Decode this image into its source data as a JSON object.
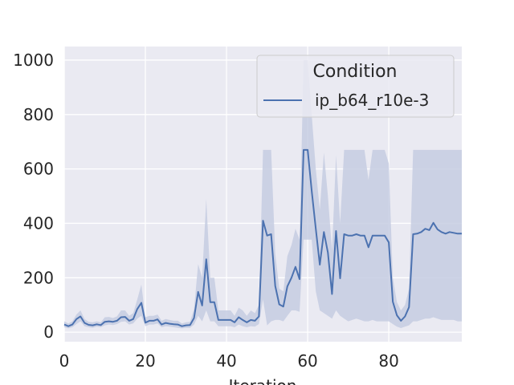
{
  "chart_data": {
    "type": "line",
    "title": "",
    "xlabel": "Iteration",
    "ylabel": "",
    "xlim": [
      0,
      98
    ],
    "ylim": [
      -35,
      1050
    ],
    "xticks": [
      0,
      20,
      40,
      60,
      80
    ],
    "yticks": [
      0,
      200,
      400,
      600,
      800,
      1000
    ],
    "grid": true,
    "legend": {
      "title": "Condition",
      "placement": "top-right"
    },
    "colors": {
      "line": "#4c72b0",
      "band": "#c5cde2",
      "background": "#eaeaf2",
      "grid": "#ffffff"
    },
    "series": [
      {
        "name": "ip_b64_r10e-3",
        "x": [
          0,
          1,
          2,
          3,
          4,
          5,
          6,
          7,
          8,
          9,
          10,
          11,
          12,
          13,
          14,
          15,
          16,
          17,
          18,
          19,
          20,
          21,
          22,
          23,
          24,
          25,
          26,
          27,
          28,
          29,
          30,
          31,
          32,
          33,
          34,
          35,
          36,
          37,
          38,
          39,
          40,
          41,
          42,
          43,
          44,
          45,
          46,
          47,
          48,
          49,
          50,
          51,
          52,
          53,
          54,
          55,
          56,
          57,
          58,
          59,
          60,
          61,
          62,
          63,
          64,
          65,
          66,
          67,
          68,
          69,
          70,
          71,
          72,
          73,
          74,
          75,
          76,
          77,
          78,
          79,
          80,
          81,
          82,
          83,
          84,
          85,
          86,
          87,
          88,
          89,
          90,
          91,
          92,
          93,
          94,
          95,
          96,
          97,
          98
        ],
        "y": [
          28,
          22,
          28,
          48,
          58,
          34,
          27,
          25,
          29,
          26,
          38,
          40,
          38,
          42,
          55,
          56,
          42,
          48,
          85,
          108,
          35,
          42,
          42,
          47,
          28,
          34,
          31,
          29,
          28,
          22,
          25,
          26,
          52,
          148,
          98,
          268,
          110,
          110,
          45,
          45,
          45,
          45,
          36,
          55,
          45,
          36,
          45,
          42,
          58,
          410,
          355,
          360,
          170,
          102,
          94,
          168,
          200,
          240,
          195,
          670,
          670,
          520,
          380,
          248,
          368,
          292,
          140,
          372,
          198,
          360,
          355,
          355,
          360,
          355,
          355,
          312,
          355,
          355,
          355,
          355,
          330,
          112,
          62,
          42,
          58,
          92,
          360,
          362,
          368,
          380,
          375,
          402,
          378,
          368,
          362,
          368,
          365,
          362,
          362
        ],
        "lower": [
          18,
          14,
          18,
          30,
          40,
          22,
          18,
          16,
          20,
          18,
          25,
          28,
          26,
          30,
          38,
          40,
          28,
          32,
          50,
          60,
          22,
          28,
          28,
          32,
          18,
          22,
          20,
          18,
          16,
          14,
          16,
          16,
          28,
          60,
          40,
          80,
          40,
          40,
          22,
          22,
          22,
          22,
          18,
          28,
          22,
          18,
          22,
          20,
          30,
          120,
          25,
          40,
          45,
          45,
          40,
          60,
          80,
          80,
          75,
          340,
          340,
          340,
          150,
          80,
          70,
          60,
          50,
          80,
          60,
          50,
          40,
          45,
          50,
          45,
          40,
          40,
          45,
          40,
          40,
          40,
          40,
          30,
          20,
          15,
          20,
          25,
          40,
          40,
          45,
          50,
          50,
          55,
          50,
          45,
          45,
          45,
          45,
          40,
          40
        ],
        "upper": [
          40,
          32,
          40,
          65,
          80,
          48,
          38,
          36,
          40,
          36,
          55,
          56,
          52,
          58,
          80,
          80,
          60,
          70,
          120,
          175,
          55,
          60,
          60,
          65,
          42,
          48,
          45,
          42,
          42,
          32,
          36,
          38,
          85,
          250,
          200,
          490,
          200,
          200,
          80,
          80,
          80,
          80,
          60,
          90,
          80,
          60,
          80,
          70,
          100,
          670,
          670,
          670,
          290,
          160,
          150,
          280,
          320,
          380,
          340,
          1000,
          1000,
          800,
          600,
          450,
          660,
          500,
          300,
          650,
          400,
          670,
          670,
          670,
          670,
          670,
          670,
          560,
          670,
          670,
          670,
          670,
          620,
          200,
          110,
          80,
          100,
          160,
          670,
          670,
          670,
          670,
          670,
          670,
          670,
          670,
          670,
          670,
          670,
          670,
          670
        ]
      }
    ]
  }
}
